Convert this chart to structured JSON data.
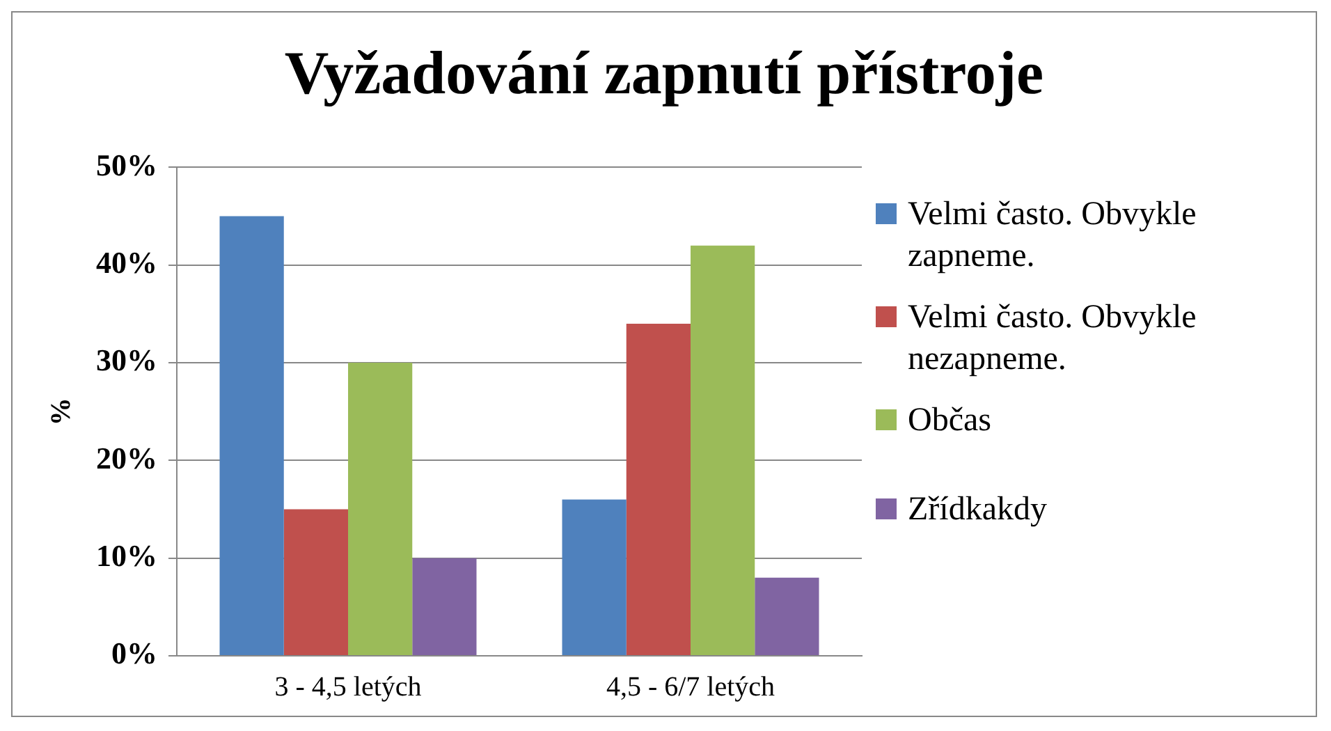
{
  "chart_data": {
    "type": "bar",
    "title": "Vyžadování zapnutí přístroje",
    "ylabel": "%",
    "categories": [
      "3 - 4,5 letých",
      "4,5 - 6/7 letých"
    ],
    "series": [
      {
        "name": "Velmi často. Obvykle zapneme.",
        "color": "#4f81bd",
        "values": [
          45,
          16
        ]
      },
      {
        "name": "Velmi často. Obvykle nezapneme.",
        "color": "#c0504d",
        "values": [
          15,
          34
        ]
      },
      {
        "name": "Občas",
        "color": "#9bbb59",
        "values": [
          30,
          42
        ]
      },
      {
        "name": "Zřídkakdy",
        "color": "#8064a2",
        "values": [
          10,
          8
        ]
      }
    ],
    "ylim": [
      0,
      50
    ],
    "yticks": [
      {
        "value": 0,
        "label": "0%"
      },
      {
        "value": 10,
        "label": "10%"
      },
      {
        "value": 20,
        "label": "20%"
      },
      {
        "value": 30,
        "label": "30%"
      },
      {
        "value": 40,
        "label": "40%"
      },
      {
        "value": 50,
        "label": "50%"
      }
    ],
    "grid": "y",
    "legend": "right"
  }
}
